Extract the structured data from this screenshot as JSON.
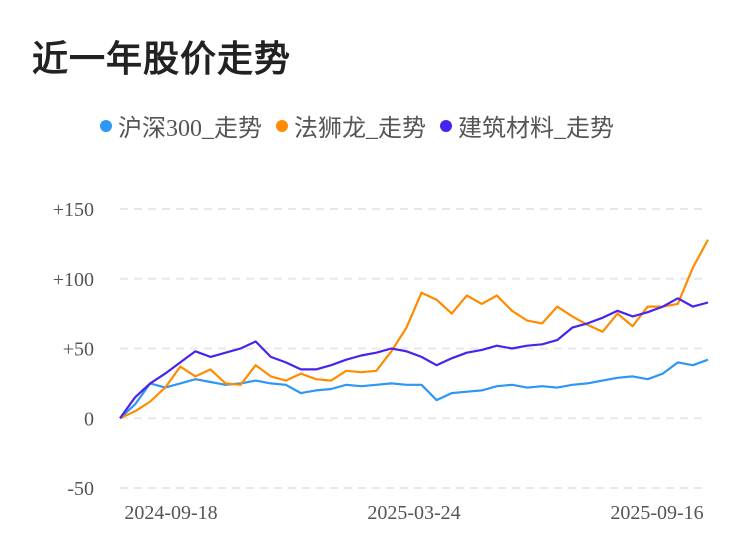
{
  "title": "近一年股价走势",
  "chart_data": {
    "type": "line",
    "title": "近一年股价走势",
    "xlabel": "",
    "ylabel": "",
    "ylim": [
      -50,
      150
    ],
    "yticks": [
      "+150",
      "+100",
      "+50",
      "0",
      "-50"
    ],
    "ytick_values": [
      150,
      100,
      50,
      0,
      -50
    ],
    "xticks": [
      "2024-09-18",
      "2025-03-24",
      "2025-09-16"
    ],
    "grid": true,
    "legend_position": "top",
    "series": [
      {
        "name": "沪深300_走势",
        "color": "#2e96f5",
        "values": [
          0,
          10,
          25,
          22,
          25,
          28,
          26,
          24,
          25,
          27,
          25,
          24,
          18,
          20,
          21,
          24,
          23,
          24,
          25,
          24,
          24,
          13,
          18,
          19,
          20,
          23,
          24,
          22,
          23,
          22,
          24,
          25,
          27,
          29,
          30,
          28,
          32,
          40,
          38,
          42
        ]
      },
      {
        "name": "法狮龙_走势",
        "color": "#ff8c00",
        "values": [
          0,
          5,
          12,
          22,
          37,
          30,
          35,
          25,
          24,
          38,
          30,
          27,
          32,
          28,
          27,
          34,
          33,
          34,
          48,
          65,
          90,
          85,
          75,
          88,
          82,
          88,
          77,
          70,
          68,
          80,
          73,
          67,
          62,
          75,
          66,
          80,
          80,
          82,
          108,
          128
        ]
      },
      {
        "name": "建筑材料_走势",
        "color": "#4a22ee",
        "values": [
          0,
          15,
          25,
          32,
          40,
          48,
          44,
          47,
          50,
          55,
          44,
          40,
          35,
          35,
          38,
          42,
          45,
          47,
          50,
          48,
          44,
          38,
          43,
          47,
          49,
          52,
          50,
          52,
          53,
          56,
          65,
          68,
          72,
          77,
          73,
          76,
          80,
          86,
          80,
          83
        ]
      }
    ]
  }
}
